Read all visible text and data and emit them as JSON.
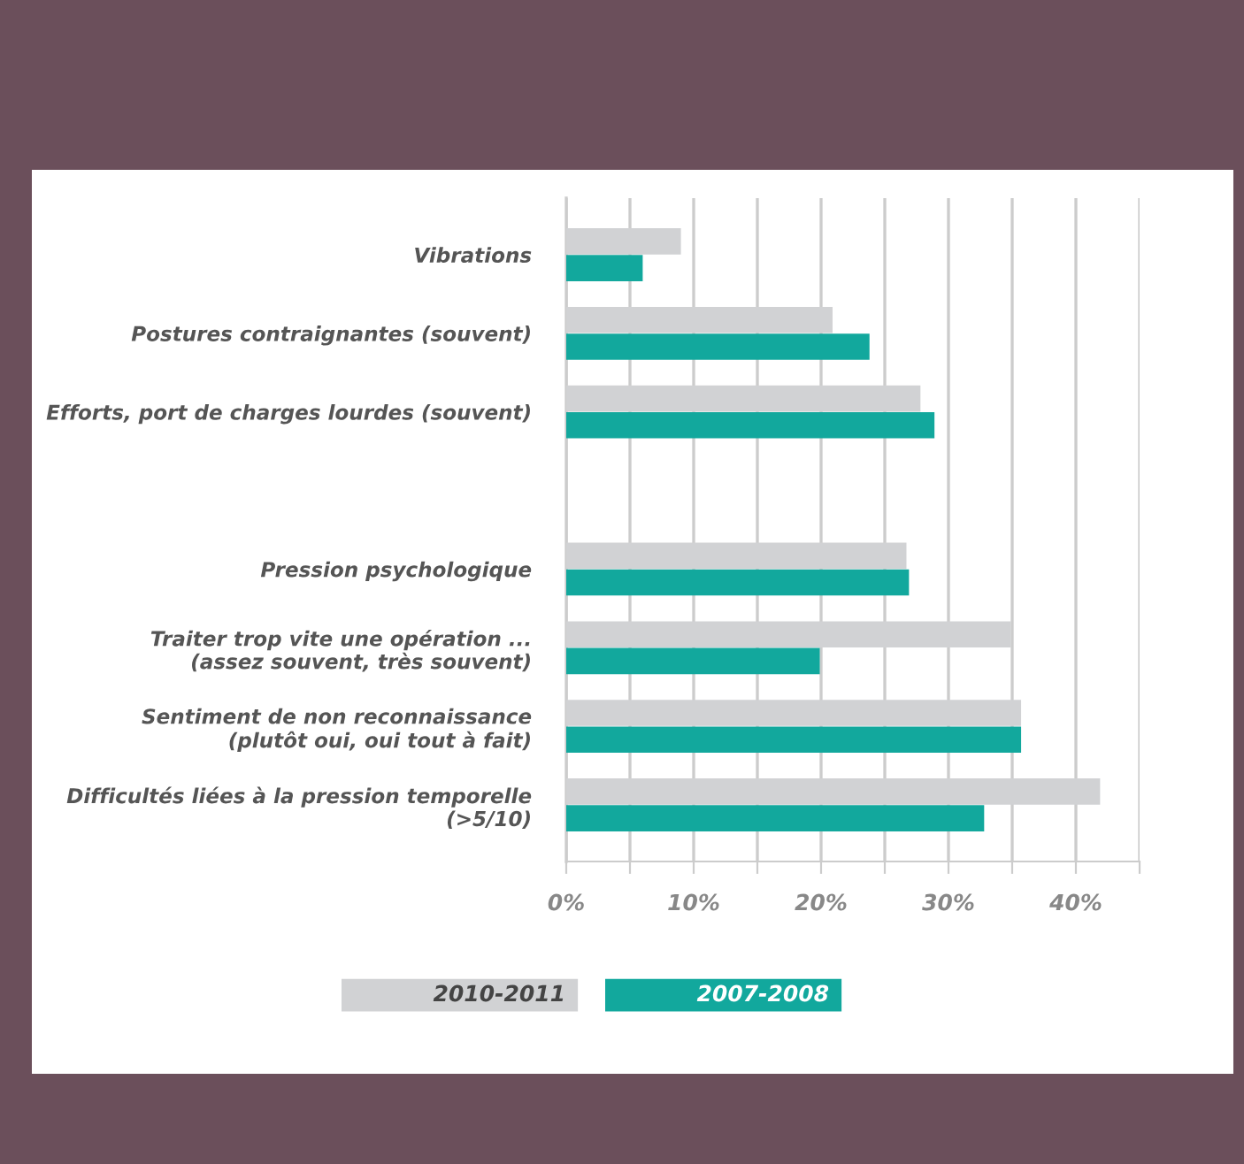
{
  "chart_data": {
    "type": "bar",
    "orientation": "horizontal",
    "categories": [
      "Vibrations",
      "Postures contraignantes (souvent)",
      "Efforts, port de charges lourdes (souvent)",
      null,
      "Pression psychologique",
      "Traiter trop vite une opération ...\n(assez souvent, très souvent)",
      "Sentiment de non reconnaissance\n(plutôt oui, oui tout à fait)",
      "Difficultés liées à la pression temporelle\n(>5/10)"
    ],
    "series": [
      {
        "name": "2010-2011",
        "color": "#d1d2d4",
        "values": [
          9.0,
          20.9,
          27.8,
          null,
          26.7,
          34.9,
          35.7,
          41.9
        ]
      },
      {
        "name": "2007-2008",
        "color": "#12a89d",
        "values": [
          6.0,
          23.8,
          28.9,
          null,
          26.9,
          19.9,
          35.7,
          32.8
        ]
      }
    ],
    "xlim": [
      0,
      45
    ],
    "xticks": [
      {
        "value": 0,
        "label": "0%"
      },
      {
        "value": 5,
        "label": null
      },
      {
        "value": 10,
        "label": "10%"
      },
      {
        "value": 15,
        "label": null
      },
      {
        "value": 20,
        "label": "20%"
      },
      {
        "value": 25,
        "label": null
      },
      {
        "value": 30,
        "label": "30%"
      },
      {
        "value": 35,
        "label": null
      },
      {
        "value": 40,
        "label": "40%"
      },
      {
        "value": 45,
        "label": null
      }
    ],
    "grid": "x",
    "legend": "bottom"
  }
}
